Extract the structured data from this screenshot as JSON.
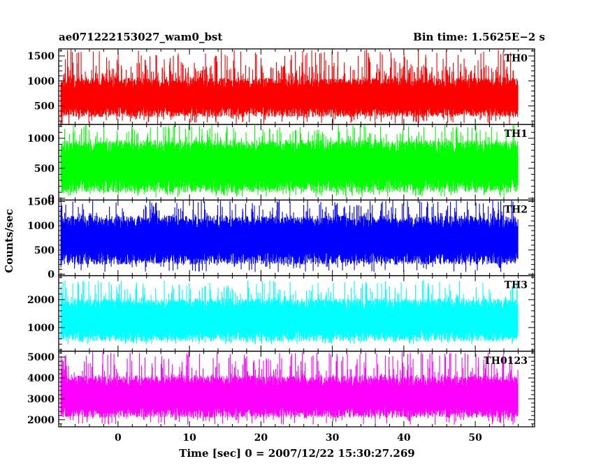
{
  "header": {
    "title": "ae071222153027_wam0_bst",
    "bin_time": "Bin time: 1.5625E−2 s"
  },
  "chart_data": {
    "type": "line",
    "xlabel": "Time [sec] 0 = 2007/12/22 15:30:27.269",
    "ylabel": "Counts/sec",
    "xlim": [
      -8.3,
      58.3
    ],
    "x_data_range": [
      -8,
      56
    ],
    "x_ticks": [
      0,
      10,
      20,
      30,
      40,
      50
    ],
    "x_tick_labels": [
      "0",
      "10",
      "20",
      "30",
      "40",
      "50"
    ],
    "bin_time_s": 0.015625,
    "panels": [
      {
        "name": "TH0",
        "color": "#ff0000",
        "ylim": [
          130,
          1640
        ],
        "ticks": [
          500,
          1000,
          1500
        ],
        "tick_labels": [
          "500",
          "1000",
          "1500"
        ],
        "low": 380,
        "high": 960,
        "spike_min": 1300,
        "spike_max": 1640,
        "dip_min": 130
      },
      {
        "name": "TH1",
        "color": "#00ff00",
        "ylim": [
          -30,
          1230
        ],
        "ticks": [
          0,
          500,
          1000
        ],
        "tick_labels": [
          "0",
          "500",
          "1000"
        ],
        "low": 210,
        "high": 860,
        "spike_min": 950,
        "spike_max": 1230,
        "dip_min": 20
      },
      {
        "name": "TH2",
        "color": "#0000ff",
        "ylim": [
          -30,
          1530
        ],
        "ticks": [
          0,
          500,
          1000,
          1500
        ],
        "tick_labels": [
          "0",
          "500",
          "1000",
          "1500"
        ],
        "low": 330,
        "high": 1080,
        "spike_min": 1150,
        "spike_max": 1530,
        "dip_min": 40
      },
      {
        "name": "TH3",
        "color": "#00ffff",
        "ylim": [
          150,
          2860
        ],
        "ticks": [
          1000,
          2000
        ],
        "tick_labels": [
          "1000",
          "2000"
        ],
        "low": 700,
        "high": 1850,
        "spike_min": 2000,
        "spike_max": 2700,
        "dip_min": 400
      },
      {
        "name": "TH0123",
        "color": "#ff00ff",
        "ylim": [
          1660,
          5280
        ],
        "ticks": [
          2000,
          3000,
          4000,
          5000
        ],
        "tick_labels": [
          "2000",
          "3000",
          "4000",
          "5000"
        ],
        "low": 2350,
        "high": 3850,
        "spike_min": 4200,
        "spike_max": 5250,
        "dip_min": 1750
      }
    ]
  }
}
